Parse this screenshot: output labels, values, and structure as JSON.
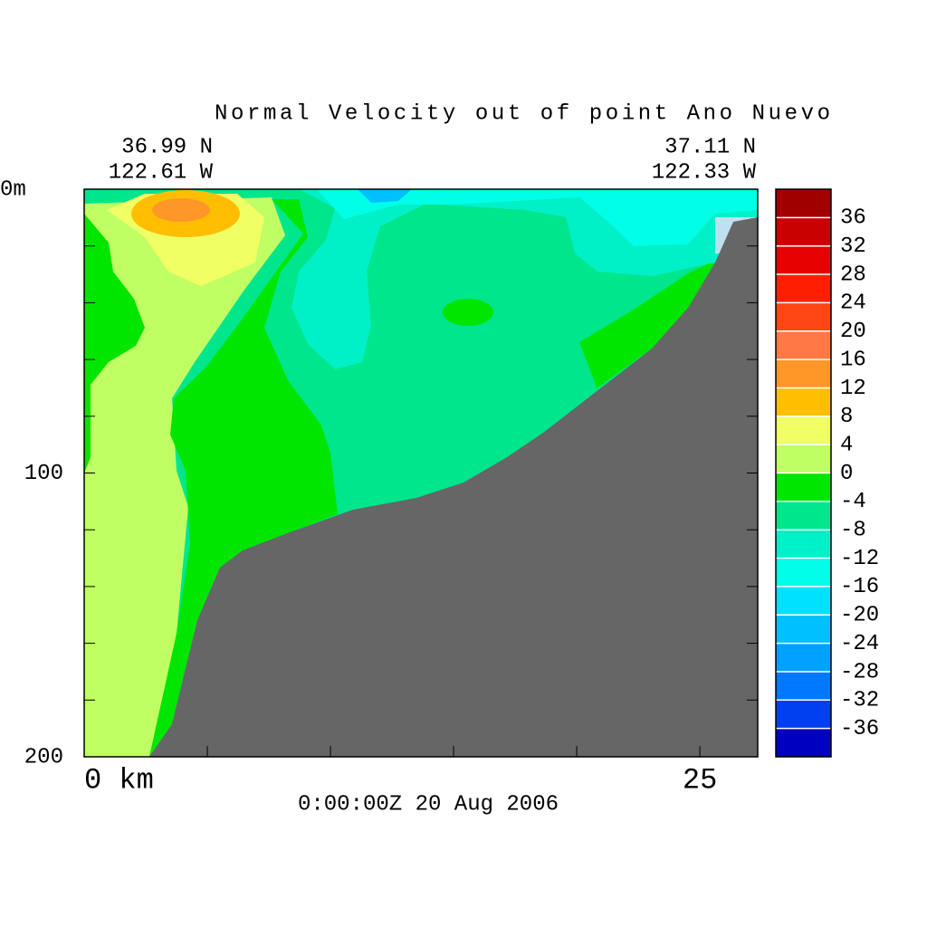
{
  "chart_data": {
    "type": "contour",
    "title": "Normal Velocity out of point Ano Nuevo",
    "left_lat": "36.99 N",
    "left_lon": "122.61 W",
    "right_lat": "37.11 N",
    "right_lon": "122.33 W",
    "time_label": "0:00:00Z 20 Aug 2006",
    "xlim": [
      0,
      27.35
    ],
    "xticks": [
      {
        "value": 0,
        "label": "0 km"
      },
      25
    ],
    "xminorticks": [
      5,
      10,
      15,
      20
    ],
    "ylim": [
      0,
      200
    ],
    "yticks": [
      {
        "value": 0,
        "label": "0m"
      },
      100,
      200
    ],
    "yminorticks": [
      20,
      40,
      60,
      80,
      120,
      140,
      160,
      180
    ],
    "colorbar": {
      "levels": [
        36,
        32,
        28,
        24,
        20,
        16,
        12,
        8,
        4,
        0,
        -4,
        -8,
        -12,
        -16,
        -20,
        -24,
        -28,
        -32,
        -36
      ],
      "colors": [
        "#a00000",
        "#c80000",
        "#e60000",
        "#ff1e00",
        "#ff4614",
        "#ff7846",
        "#ff9628",
        "#ffbe00",
        "#f0ff64",
        "#c0ff64",
        "#00e600",
        "#00e68c",
        "#00f0c8",
        "#00ffe6",
        "#00e0ff",
        "#00c0ff",
        "#00a0ff",
        "#0078ff",
        "#0040f0",
        "#0000c0"
      ]
    }
  }
}
